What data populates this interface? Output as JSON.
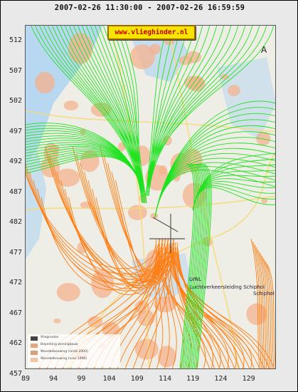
{
  "header": {
    "timestamp_range": "2007-02-26 11:30:00 - 2007-02-26 16:59:59"
  },
  "badge": {
    "url": "www.vlieghinder.nl"
  },
  "axes": {
    "y_ticks": [
      "512",
      "507",
      "502",
      "497",
      "492",
      "487",
      "482",
      "477",
      "472",
      "467",
      "462",
      "457"
    ],
    "x_ticks": [
      "89",
      "94",
      "99",
      "104",
      "109",
      "114",
      "119",
      "124",
      "129"
    ]
  },
  "map": {
    "north_symbol": "A",
    "airport_marker": "LVNL",
    "airport_label": "Luchtverkeersleiding Schiphol",
    "airport_sublabel": "Schiphol",
    "legend": [
      {
        "label": "Vliegroutes",
        "color": "#444444"
      },
      {
        "label": "Beperking woningbouw",
        "color": "#e5a979"
      },
      {
        "label": "Woonbebouwing (sinds 2000)",
        "color": "#d89f76"
      },
      {
        "label": "Woonbebouwing (voor 1990)",
        "color": "#f2c4a2"
      }
    ]
  },
  "colors": {
    "landings": "#1fe31f",
    "departures": "#ff7d12",
    "water": "#b8d7f0",
    "built_up": "#f4b28e",
    "badge_background": "#f7e400",
    "badge_text": "#c00000"
  }
}
